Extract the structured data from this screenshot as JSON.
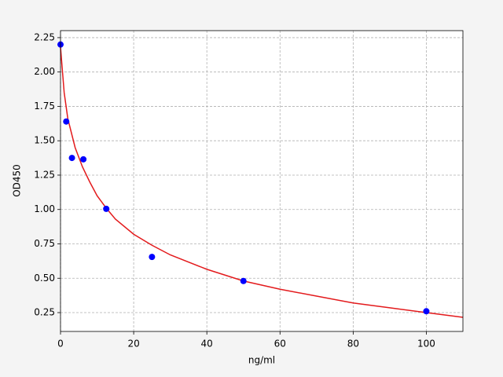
{
  "chart_data": {
    "type": "scatter",
    "x_label": "ng/ml",
    "y_label": "OD450",
    "xlim": [
      0,
      110
    ],
    "xticks": [
      0,
      20,
      40,
      60,
      80,
      100
    ],
    "ylim": [
      0.113,
      2.301
    ],
    "yticks": [
      0.25,
      {
        "value": 0.5,
        "label": "0.50"
      },
      0.75,
      {
        "value": 1,
        "label": "1.00"
      },
      1.25,
      {
        "value": 1.5,
        "label": "1.50"
      },
      1.75,
      {
        "value": 2,
        "label": "2.00"
      },
      2.25
    ],
    "grid": true,
    "series": [
      {
        "mode": "line",
        "color": "#e31a1c",
        "x": [
          0,
          1,
          2,
          4,
          6,
          8,
          10,
          12.5,
          15,
          20,
          25,
          30,
          40,
          50,
          60,
          70,
          80,
          90,
          100,
          110
        ],
        "values": [
          2.18,
          1.85,
          1.66,
          1.45,
          1.31,
          1.2,
          1.1,
          1.01,
          0.93,
          0.82,
          0.74,
          0.67,
          0.565,
          0.48,
          0.42,
          0.37,
          0.32,
          0.285,
          0.25,
          0.216
        ]
      },
      {
        "mode": "markers",
        "color": "#0000ff",
        "x": [
          0,
          1.5625,
          3.125,
          6.25,
          12.5,
          25,
          50,
          100
        ],
        "values": [
          2.2,
          1.64,
          1.375,
          1.365,
          1.005,
          0.655,
          0.48,
          0.26
        ]
      }
    ]
  }
}
